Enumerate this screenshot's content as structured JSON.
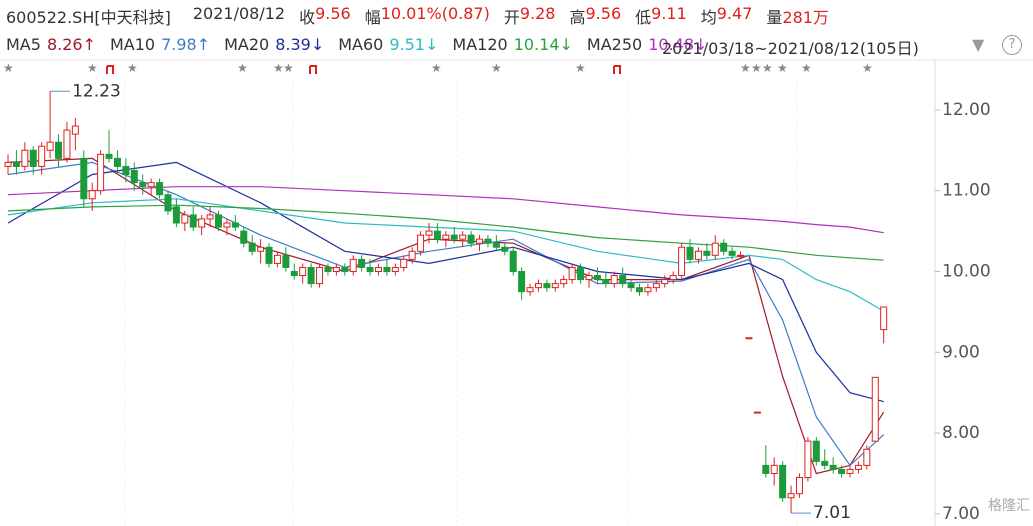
{
  "header": {
    "symbol": "600522.SH[中天科技]",
    "date": "2021/08/12",
    "items": [
      {
        "label": "收",
        "value": "9.56"
      },
      {
        "label": "幅",
        "value": "10.01%(0.87)"
      },
      {
        "label": "开",
        "value": "9.28"
      },
      {
        "label": "高",
        "value": "9.56"
      },
      {
        "label": "低",
        "value": "9.11"
      },
      {
        "label": "均",
        "value": "9.47"
      },
      {
        "label": "量",
        "value": "281万"
      }
    ],
    "range": "2021/03/18~2021/08/12(105日)",
    "watermark": "格隆汇"
  },
  "chart_data": {
    "type": "candlestick",
    "ylim": [
      6.85,
      12.37
    ],
    "yticks": [
      {
        "value": 7,
        "label": "7.00"
      },
      {
        "value": 8,
        "label": "8.00"
      },
      {
        "value": 9,
        "label": "9.00"
      },
      {
        "value": 10,
        "label": "10.00"
      },
      {
        "value": 11,
        "label": "11.00"
      },
      {
        "value": 12,
        "label": "12.00"
      }
    ],
    "up_color": "#e0201c",
    "down_color": "#1a9c3a",
    "candles": [
      [
        11.3,
        11.45,
        11.2,
        11.35
      ],
      [
        11.35,
        11.5,
        11.2,
        11.3
      ],
      [
        11.3,
        11.6,
        11.25,
        11.5
      ],
      [
        11.5,
        11.55,
        11.2,
        11.3
      ],
      [
        11.3,
        11.6,
        11.2,
        11.55
      ],
      [
        11.5,
        12.23,
        11.4,
        11.6
      ],
      [
        11.6,
        11.7,
        11.3,
        11.4
      ],
      [
        11.4,
        11.85,
        11.35,
        11.75
      ],
      [
        11.7,
        11.9,
        11.5,
        11.8
      ],
      [
        11.4,
        11.5,
        10.8,
        10.9
      ],
      [
        10.9,
        11.1,
        10.75,
        11.0
      ],
      [
        11.0,
        11.5,
        10.95,
        11.45
      ],
      [
        11.45,
        11.75,
        11.35,
        11.4
      ],
      [
        11.4,
        11.5,
        11.2,
        11.3
      ],
      [
        11.3,
        11.4,
        11.1,
        11.2
      ],
      [
        11.25,
        11.35,
        11.0,
        11.1
      ],
      [
        11.1,
        11.2,
        10.95,
        11.05
      ],
      [
        11.05,
        11.15,
        10.95,
        11.1
      ],
      [
        11.1,
        11.15,
        10.9,
        10.95
      ],
      [
        10.95,
        11.0,
        10.7,
        10.75
      ],
      [
        10.8,
        10.9,
        10.55,
        10.6
      ],
      [
        10.6,
        10.75,
        10.5,
        10.7
      ],
      [
        10.7,
        10.8,
        10.5,
        10.55
      ],
      [
        10.55,
        10.7,
        10.45,
        10.65
      ],
      [
        10.65,
        10.8,
        10.55,
        10.7
      ],
      [
        10.7,
        10.75,
        10.5,
        10.55
      ],
      [
        10.55,
        10.65,
        10.45,
        10.6
      ],
      [
        10.6,
        10.7,
        10.5,
        10.55
      ],
      [
        10.5,
        10.55,
        10.3,
        10.35
      ],
      [
        10.35,
        10.45,
        10.2,
        10.25
      ],
      [
        10.25,
        10.4,
        10.1,
        10.3
      ],
      [
        10.3,
        10.35,
        10.05,
        10.1
      ],
      [
        10.1,
        10.25,
        10.05,
        10.2
      ],
      [
        10.2,
        10.3,
        10.0,
        10.05
      ],
      [
        10.0,
        10.1,
        9.9,
        9.95
      ],
      [
        9.95,
        10.1,
        9.85,
        10.05
      ],
      [
        10.05,
        10.1,
        9.8,
        9.85
      ],
      [
        9.85,
        10.1,
        9.8,
        10.05
      ],
      [
        10.05,
        10.1,
        9.95,
        10.0
      ],
      [
        10.0,
        10.1,
        9.95,
        10.05
      ],
      [
        10.05,
        10.1,
        9.95,
        10.0
      ],
      [
        10.0,
        10.2,
        9.95,
        10.15
      ],
      [
        10.15,
        10.2,
        10.0,
        10.05
      ],
      [
        10.05,
        10.15,
        9.95,
        10.0
      ],
      [
        10.0,
        10.1,
        9.95,
        10.05
      ],
      [
        10.05,
        10.15,
        9.95,
        10.0
      ],
      [
        10.0,
        10.1,
        9.95,
        10.05
      ],
      [
        10.05,
        10.2,
        10.0,
        10.15
      ],
      [
        10.15,
        10.3,
        10.1,
        10.25
      ],
      [
        10.25,
        10.5,
        10.2,
        10.45
      ],
      [
        10.45,
        10.6,
        10.35,
        10.5
      ],
      [
        10.5,
        10.6,
        10.35,
        10.4
      ],
      [
        10.4,
        10.5,
        10.3,
        10.45
      ],
      [
        10.45,
        10.55,
        10.35,
        10.4
      ],
      [
        10.4,
        10.5,
        10.3,
        10.45
      ],
      [
        10.45,
        10.5,
        10.3,
        10.35
      ],
      [
        10.35,
        10.45,
        10.25,
        10.4
      ],
      [
        10.4,
        10.45,
        10.3,
        10.35
      ],
      [
        10.35,
        10.45,
        10.25,
        10.3
      ],
      [
        10.3,
        10.35,
        10.2,
        10.25
      ],
      [
        10.25,
        10.3,
        9.95,
        10.0
      ],
      [
        10.0,
        10.05,
        9.65,
        9.75
      ],
      [
        9.75,
        9.85,
        9.7,
        9.8
      ],
      [
        9.8,
        9.9,
        9.75,
        9.85
      ],
      [
        9.85,
        9.9,
        9.75,
        9.8
      ],
      [
        9.8,
        9.9,
        9.75,
        9.85
      ],
      [
        9.85,
        9.95,
        9.8,
        9.9
      ],
      [
        9.9,
        10.1,
        9.85,
        10.05
      ],
      [
        10.05,
        10.1,
        9.85,
        9.9
      ],
      [
        9.9,
        10.0,
        9.8,
        9.95
      ],
      [
        9.95,
        10.05,
        9.85,
        9.9
      ],
      [
        9.9,
        10.0,
        9.8,
        9.85
      ],
      [
        9.85,
        10.0,
        9.8,
        9.95
      ],
      [
        9.95,
        10.05,
        9.8,
        9.85
      ],
      [
        9.85,
        9.9,
        9.75,
        9.8
      ],
      [
        9.8,
        9.85,
        9.7,
        9.75
      ],
      [
        9.75,
        9.85,
        9.7,
        9.8
      ],
      [
        9.8,
        9.9,
        9.75,
        9.85
      ],
      [
        9.85,
        9.95,
        9.8,
        9.9
      ],
      [
        9.9,
        10.0,
        9.85,
        9.95
      ],
      [
        9.95,
        10.35,
        9.9,
        10.3
      ],
      [
        10.3,
        10.4,
        10.1,
        10.15
      ],
      [
        10.15,
        10.3,
        10.1,
        10.25
      ],
      [
        10.25,
        10.35,
        10.15,
        10.2
      ],
      [
        10.2,
        10.45,
        10.15,
        10.35
      ],
      [
        10.35,
        10.4,
        10.2,
        10.25
      ],
      [
        10.25,
        10.3,
        10.15,
        10.2
      ],
      [
        10.2,
        10.25,
        10.15,
        10.2
      ],
      [
        9.18,
        9.18,
        9.18,
        9.18
      ],
      [
        8.26,
        8.26,
        8.26,
        8.26
      ],
      [
        7.6,
        7.85,
        7.45,
        7.5
      ],
      [
        7.5,
        7.7,
        7.35,
        7.6
      ],
      [
        7.6,
        7.65,
        7.15,
        7.2
      ],
      [
        7.2,
        7.35,
        7.01,
        7.25
      ],
      [
        7.25,
        7.5,
        7.2,
        7.45
      ],
      [
        7.45,
        7.95,
        7.4,
        7.9
      ],
      [
        7.9,
        7.95,
        7.6,
        7.65
      ],
      [
        7.65,
        7.8,
        7.55,
        7.6
      ],
      [
        7.6,
        7.7,
        7.5,
        7.55
      ],
      [
        7.55,
        7.6,
        7.45,
        7.5
      ],
      [
        7.5,
        7.6,
        7.45,
        7.55
      ],
      [
        7.55,
        7.65,
        7.5,
        7.6
      ],
      [
        7.6,
        7.85,
        7.55,
        7.8
      ],
      [
        7.9,
        8.69,
        7.9,
        8.69
      ],
      [
        9.28,
        9.56,
        9.11,
        9.56
      ]
    ],
    "ma_x": [
      0,
      10,
      20,
      30,
      40,
      50,
      60,
      70,
      80,
      88,
      92,
      96,
      100,
      104
    ],
    "series": [
      {
        "name": "MA5",
        "label": "8.26↑",
        "color": "#a0182c",
        "values": [
          11.35,
          11.4,
          10.75,
          10.3,
          10.0,
          10.4,
          10.35,
          9.9,
          9.9,
          10.2,
          8.7,
          7.5,
          7.6,
          8.26
        ]
      },
      {
        "name": "MA10",
        "label": "7.98↑",
        "color": "#3a7fc8",
        "values": [
          11.2,
          11.35,
          10.95,
          10.45,
          10.05,
          10.25,
          10.4,
          9.85,
          9.88,
          10.15,
          9.4,
          8.2,
          7.6,
          7.98
        ]
      },
      {
        "name": "MA20",
        "label": "8.39↓",
        "color": "#1c2fa0",
        "values": [
          10.6,
          11.2,
          11.35,
          10.85,
          10.25,
          10.1,
          10.3,
          10.0,
          9.9,
          10.1,
          9.9,
          9.0,
          8.5,
          8.39
        ]
      },
      {
        "name": "MA60",
        "label": "9.51↓",
        "color": "#2cbcc4",
        "values": [
          10.7,
          10.85,
          10.9,
          10.75,
          10.6,
          10.55,
          10.5,
          10.25,
          10.1,
          10.2,
          10.15,
          9.9,
          9.75,
          9.51
        ]
      },
      {
        "name": "MA120",
        "label": "10.14↓",
        "color": "#2ea040",
        "values": [
          10.75,
          10.8,
          10.82,
          10.78,
          10.72,
          10.65,
          10.55,
          10.42,
          10.35,
          10.3,
          10.25,
          10.2,
          10.17,
          10.14
        ]
      },
      {
        "name": "MA250",
        "label": "10.48↓",
        "color": "#b030c0",
        "values": [
          10.95,
          11.0,
          11.05,
          11.05,
          11.0,
          10.95,
          10.9,
          10.8,
          10.7,
          10.65,
          10.62,
          10.58,
          10.55,
          10.48
        ]
      }
    ],
    "annotations": [
      {
        "label": "12.23",
        "value": 12.23,
        "x": 5
      },
      {
        "label": "7.01",
        "value": 7.01,
        "x": 93
      }
    ]
  }
}
